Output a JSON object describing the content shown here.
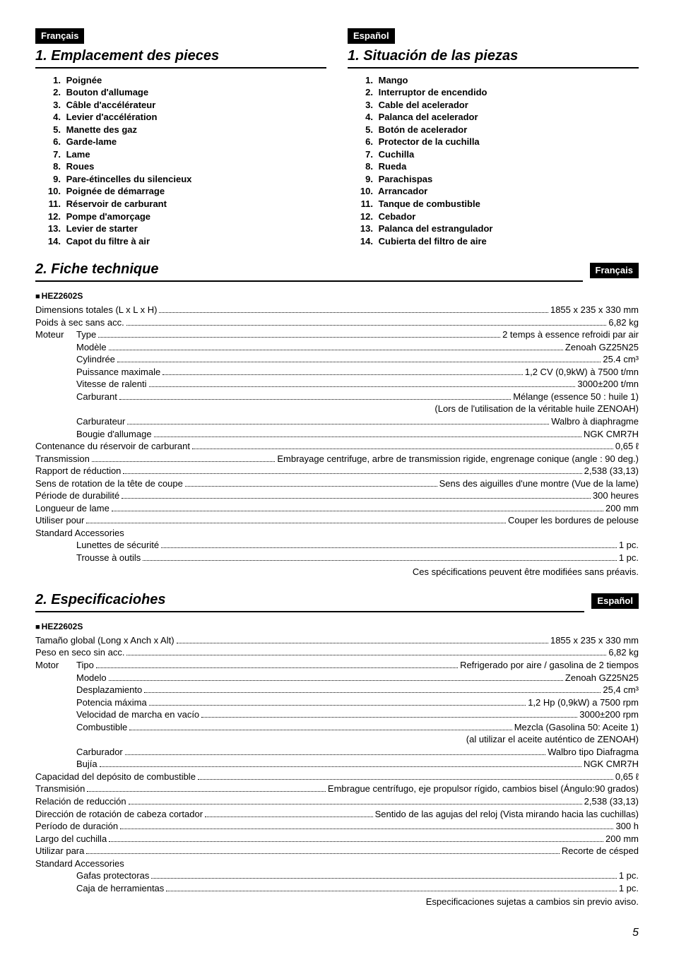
{
  "lang_fr": "Français",
  "lang_es": "Español",
  "sec1_fr_title": "1. Emplacement des pieces",
  "sec1_es_title": "1. Situación de las piezas",
  "sec2_fr_title": "2. Fiche technique",
  "sec2_es_title": "2. Especificaciohes",
  "model_header": "HEZ2602S",
  "parts_fr": [
    "Poignée",
    "Bouton d'allumage",
    "Câble d'accélérateur",
    "Levier d'accélération",
    "Manette des gaz",
    "Garde-lame",
    "Lame",
    "Roues",
    "Pare-étincelles du silencieux",
    "Poignée de démarrage",
    "Réservoir de carburant",
    "Pompe d'amorçage",
    "Levier de starter",
    "Capot du filtre à air"
  ],
  "parts_es": [
    "Mango",
    "Interruptor de encendido",
    "Cable del acelerador",
    "Palanca del acelerador",
    "Botón de acelerador",
    "Protector de la cuchilla",
    "Cuchilla",
    "Rueda",
    "Parachispas",
    "Arrancador",
    "Tanque de combustible",
    "Cebador",
    "Palanca del estrangulador",
    "Cubierta del filtro de aire"
  ],
  "specs_fr": [
    {
      "indent": 0,
      "label": "Dimensions totales (L x L x H)",
      "value": "1855 x 235 x 330 mm"
    },
    {
      "indent": 0,
      "label": "Poids à sec sans acc.",
      "value": "6,82 kg"
    },
    {
      "indent": 0,
      "prefix": "Moteur",
      "label": "Type",
      "value": "2 temps à essence refroidi par air"
    },
    {
      "indent": 1,
      "label": "Modèle",
      "value": "Zenoah GZ25N25"
    },
    {
      "indent": 1,
      "label": "Cylindrée",
      "value": "25.4 cm³"
    },
    {
      "indent": 1,
      "label": "Puissance maximale",
      "value": "1,2 CV (0,9kW) à 7500 t/mn"
    },
    {
      "indent": 1,
      "label": "Vitesse de ralenti",
      "value": "3000±200 t/mn"
    },
    {
      "indent": 1,
      "label": "Carburant",
      "value": "Mélange (essence 50 : huile 1)"
    },
    {
      "indent": -1,
      "note": "(Lors de l'utilisation de la véritable huile ZENOAH)"
    },
    {
      "indent": 1,
      "label": "Carburateur",
      "value": "Walbro à diaphragme"
    },
    {
      "indent": 1,
      "label": "Bougie d'allumage",
      "value": "NGK CMR7H"
    },
    {
      "indent": 0,
      "label": "Contenance du réservoir de carburant",
      "value": "0,65 ℓ"
    },
    {
      "indent": 0,
      "label": "Transmission",
      "value": "Embrayage centrifuge, arbre de transmission rigide, engrenage conique (angle : 90 deg.)"
    },
    {
      "indent": 0,
      "label": "Rapport de réduction",
      "value": "2,538 (33,13)"
    },
    {
      "indent": 0,
      "label": "Sens de rotation de la tête de coupe",
      "value": "Sens des aiguilles d'une montre (Vue de la lame)"
    },
    {
      "indent": 0,
      "label": "Période de durabilité",
      "value": "300 heures"
    },
    {
      "indent": 0,
      "label": "Longueur de lame",
      "value": "200 mm"
    },
    {
      "indent": 0,
      "label": "Utiliser pour",
      "value": "Couper les bordures de pelouse"
    },
    {
      "indent": 0,
      "plain": "Standard Accessories"
    },
    {
      "indent": 1,
      "label": "Lunettes de sécurité",
      "value": "1 pc."
    },
    {
      "indent": 1,
      "label": "Trousse à outils",
      "value": "1 pc."
    }
  ],
  "specs_fr_footer": "Ces spécifications peuvent être modifiées sans préavis.",
  "specs_es": [
    {
      "indent": 0,
      "label": "Tamaño global (Long x Anch x Alt)",
      "value": "1855 x 235 x 330 mm"
    },
    {
      "indent": 0,
      "label": "Peso en seco sin acc.",
      "value": "6,82 kg"
    },
    {
      "indent": 0,
      "prefix": "Motor",
      "label": "Tipo",
      "value": "Refrigerado por aire / gasolina de 2 tiempos"
    },
    {
      "indent": 1,
      "label": "Modelo",
      "value": "Zenoah GZ25N25"
    },
    {
      "indent": 1,
      "label": "Desplazamiento",
      "value": "25,4 cm³"
    },
    {
      "indent": 1,
      "label": "Potencia máxima",
      "value": "1,2 Hp (0,9kW) a 7500 rpm"
    },
    {
      "indent": 1,
      "label": "Velocidad de marcha en vacío",
      "value": "3000±200 rpm"
    },
    {
      "indent": 1,
      "label": "Combustible",
      "value": "Mezcla (Gasolina 50: Aceite 1)"
    },
    {
      "indent": -1,
      "note": "(al utilizar el aceite auténtico de ZENOAH)"
    },
    {
      "indent": 1,
      "label": "Carburador",
      "value": "Walbro tipo Diafragma"
    },
    {
      "indent": 1,
      "label": "Bujía",
      "value": "NGK CMR7H"
    },
    {
      "indent": 0,
      "label": "Capacidad del depósito de combustible",
      "value": "0,65 ℓ"
    },
    {
      "indent": 0,
      "label": "Transmisión",
      "value": "Embrague centrífugo, eje propulsor rígido, cambios bisel (Ángulo:90 grados)"
    },
    {
      "indent": 0,
      "label": "Relación de reducción",
      "value": "2,538 (33,13)"
    },
    {
      "indent": 0,
      "label": "Dirección de rotación de cabeza cortador",
      "value": "Sentido de las agujas del reloj (Vista mirando hacia las cuchillas)"
    },
    {
      "indent": 0,
      "label": "Período de duración",
      "value": "300 h"
    },
    {
      "indent": 0,
      "label": "Largo del cuchilla",
      "value": "200 mm"
    },
    {
      "indent": 0,
      "label": "Utilizar para",
      "value": "Recorte de césped"
    },
    {
      "indent": 0,
      "plain": "Standard Accessories"
    },
    {
      "indent": 1,
      "label": "Gafas protectoras",
      "value": "1 pc."
    },
    {
      "indent": 1,
      "label": "Caja de herramientas",
      "value": "1 pc."
    }
  ],
  "specs_es_footer": "Especificaciones sujetas a cambios sin previo aviso.",
  "page_number": "5"
}
